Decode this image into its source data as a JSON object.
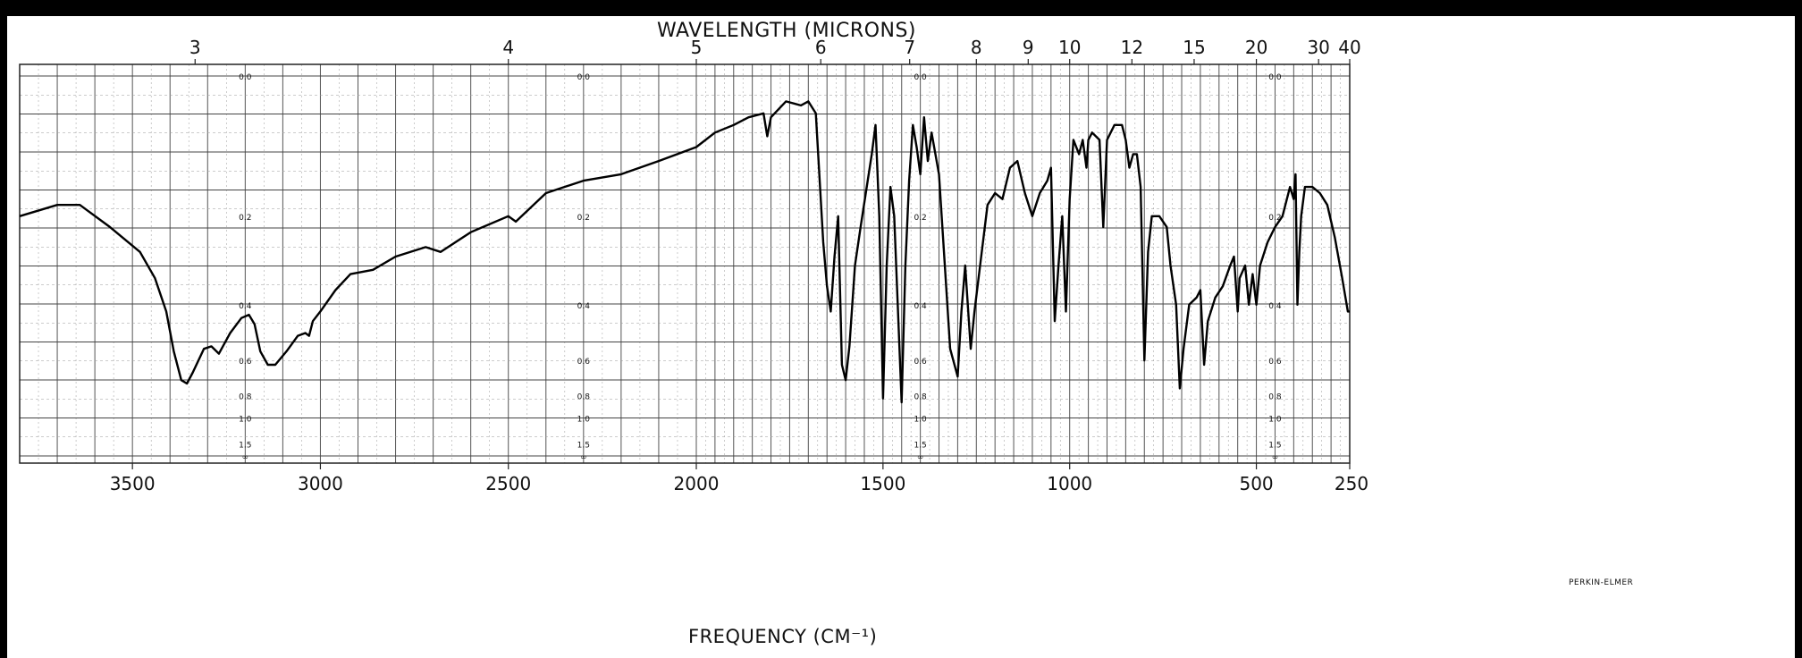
{
  "chart_data": {
    "type": "line",
    "top_axis_label": "WAVELENGTH (MICRONS)",
    "bottom_axis_label": "FREQUENCY (CM⁻¹)",
    "brand_label": "PERKIN-ELMER",
    "x_axis": {
      "unit": "cm-1",
      "range": [
        3800,
        250
      ],
      "reversed": true,
      "ticks": [
        3500,
        3000,
        2500,
        2000,
        1500,
        1000,
        500,
        250
      ],
      "tick_labels": [
        "3500",
        "3000",
        "2500",
        "2000",
        "1500",
        "1000",
        "500",
        "250"
      ],
      "scale_change_at": 2000
    },
    "top_axis": {
      "unit": "microns",
      "ticks": [
        3,
        4,
        5,
        6,
        7,
        8,
        9,
        10,
        12,
        15,
        20,
        30,
        40
      ],
      "tick_labels": [
        "3",
        "4",
        "5",
        "6",
        "7",
        "8",
        "9",
        "10",
        "12",
        "15",
        "20",
        "30",
        "40"
      ]
    },
    "y_axis": {
      "quantity": "absorbance",
      "range": [
        0,
        2
      ],
      "reversed": true,
      "ticks": [
        0,
        0.2,
        0.4,
        0.6,
        0.8,
        1.0,
        1.5,
        "∞"
      ],
      "tick_labels": [
        "0.0",
        "0.2",
        "0.4",
        "0.6",
        "0.8",
        "1.0",
        "1.5",
        "∞"
      ],
      "label_columns_cm1": [
        3200,
        2300,
        1400,
        450
      ]
    },
    "grid": true,
    "series": [
      {
        "points": [
          [
            3800,
            0.2
          ],
          [
            3700,
            0.18
          ],
          [
            3640,
            0.18
          ],
          [
            3560,
            0.22
          ],
          [
            3480,
            0.27
          ],
          [
            3440,
            0.33
          ],
          [
            3410,
            0.42
          ],
          [
            3390,
            0.56
          ],
          [
            3370,
            0.7
          ],
          [
            3355,
            0.72
          ],
          [
            3340,
            0.66
          ],
          [
            3310,
            0.55
          ],
          [
            3290,
            0.54
          ],
          [
            3270,
            0.57
          ],
          [
            3240,
            0.49
          ],
          [
            3210,
            0.44
          ],
          [
            3190,
            0.43
          ],
          [
            3175,
            0.46
          ],
          [
            3160,
            0.56
          ],
          [
            3140,
            0.62
          ],
          [
            3120,
            0.62
          ],
          [
            3090,
            0.56
          ],
          [
            3060,
            0.5
          ],
          [
            3040,
            0.49
          ],
          [
            3030,
            0.5
          ],
          [
            3020,
            0.45
          ],
          [
            3000,
            0.42
          ],
          [
            2960,
            0.36
          ],
          [
            2920,
            0.32
          ],
          [
            2860,
            0.31
          ],
          [
            2800,
            0.28
          ],
          [
            2720,
            0.26
          ],
          [
            2680,
            0.27
          ],
          [
            2600,
            0.23
          ],
          [
            2500,
            0.2
          ],
          [
            2480,
            0.21
          ],
          [
            2400,
            0.16
          ],
          [
            2300,
            0.14
          ],
          [
            2200,
            0.13
          ],
          [
            2100,
            0.11
          ],
          [
            2000,
            0.09
          ],
          [
            1950,
            0.07
          ],
          [
            1900,
            0.06
          ],
          [
            1860,
            0.05
          ],
          [
            1820,
            0.045
          ],
          [
            1810,
            0.075
          ],
          [
            1800,
            0.05
          ],
          [
            1760,
            0.03
          ],
          [
            1720,
            0.035
          ],
          [
            1700,
            0.03
          ],
          [
            1680,
            0.045
          ],
          [
            1660,
            0.25
          ],
          [
            1650,
            0.35
          ],
          [
            1640,
            0.42
          ],
          [
            1630,
            0.28
          ],
          [
            1620,
            0.2
          ],
          [
            1610,
            0.62
          ],
          [
            1600,
            0.7
          ],
          [
            1590,
            0.54
          ],
          [
            1575,
            0.3
          ],
          [
            1560,
            0.22
          ],
          [
            1530,
            0.1
          ],
          [
            1520,
            0.06
          ],
          [
            1510,
            0.2
          ],
          [
            1500,
            0.82
          ],
          [
            1490,
            0.3
          ],
          [
            1480,
            0.15
          ],
          [
            1470,
            0.2
          ],
          [
            1450,
            0.85
          ],
          [
            1440,
            0.3
          ],
          [
            1430,
            0.14
          ],
          [
            1420,
            0.06
          ],
          [
            1410,
            0.09
          ],
          [
            1400,
            0.13
          ],
          [
            1390,
            0.05
          ],
          [
            1380,
            0.11
          ],
          [
            1370,
            0.07
          ],
          [
            1350,
            0.13
          ],
          [
            1320,
            0.55
          ],
          [
            1300,
            0.68
          ],
          [
            1290,
            0.42
          ],
          [
            1280,
            0.3
          ],
          [
            1265,
            0.55
          ],
          [
            1255,
            0.42
          ],
          [
            1240,
            0.3
          ],
          [
            1220,
            0.18
          ],
          [
            1200,
            0.16
          ],
          [
            1180,
            0.17
          ],
          [
            1160,
            0.12
          ],
          [
            1140,
            0.11
          ],
          [
            1120,
            0.16
          ],
          [
            1100,
            0.2
          ],
          [
            1080,
            0.16
          ],
          [
            1060,
            0.14
          ],
          [
            1050,
            0.12
          ],
          [
            1040,
            0.45
          ],
          [
            1030,
            0.3
          ],
          [
            1020,
            0.2
          ],
          [
            1010,
            0.42
          ],
          [
            1000,
            0.17
          ],
          [
            990,
            0.08
          ],
          [
            975,
            0.1
          ],
          [
            965,
            0.08
          ],
          [
            955,
            0.12
          ],
          [
            950,
            0.08
          ],
          [
            940,
            0.07
          ],
          [
            920,
            0.08
          ],
          [
            910,
            0.22
          ],
          [
            900,
            0.08
          ],
          [
            880,
            0.06
          ],
          [
            860,
            0.06
          ],
          [
            850,
            0.08
          ],
          [
            840,
            0.12
          ],
          [
            830,
            0.1
          ],
          [
            820,
            0.1
          ],
          [
            810,
            0.15
          ],
          [
            800,
            0.6
          ],
          [
            790,
            0.27
          ],
          [
            780,
            0.2
          ],
          [
            760,
            0.2
          ],
          [
            740,
            0.22
          ],
          [
            730,
            0.3
          ],
          [
            715,
            0.4
          ],
          [
            705,
            0.75
          ],
          [
            695,
            0.55
          ],
          [
            680,
            0.4
          ],
          [
            660,
            0.38
          ],
          [
            650,
            0.36
          ],
          [
            640,
            0.62
          ],
          [
            630,
            0.45
          ],
          [
            610,
            0.38
          ],
          [
            590,
            0.35
          ],
          [
            570,
            0.3
          ],
          [
            560,
            0.28
          ],
          [
            550,
            0.42
          ],
          [
            545,
            0.33
          ],
          [
            530,
            0.3
          ],
          [
            520,
            0.4
          ],
          [
            510,
            0.32
          ],
          [
            500,
            0.4
          ],
          [
            490,
            0.3
          ],
          [
            470,
            0.25
          ],
          [
            450,
            0.22
          ],
          [
            430,
            0.2
          ],
          [
            410,
            0.15
          ],
          [
            400,
            0.17
          ],
          [
            395,
            0.13
          ],
          [
            390,
            0.4
          ],
          [
            385,
            0.27
          ],
          [
            380,
            0.2
          ],
          [
            370,
            0.15
          ],
          [
            350,
            0.15
          ],
          [
            330,
            0.16
          ],
          [
            310,
            0.18
          ],
          [
            290,
            0.24
          ],
          [
            270,
            0.33
          ],
          [
            255,
            0.42
          ],
          [
            250,
            0.42
          ]
        ]
      }
    ]
  }
}
